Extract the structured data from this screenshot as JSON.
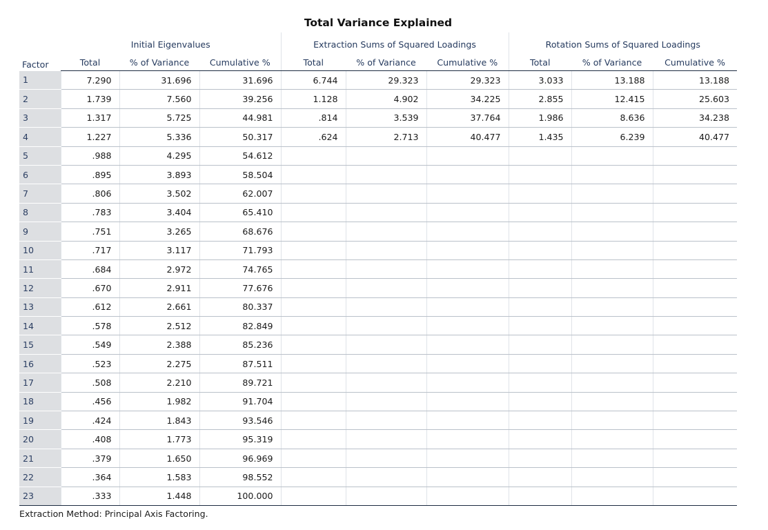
{
  "title": "Total Variance Explained",
  "groups": [
    "Initial Eigenvalues",
    "Extraction Sums of Squared Loadings",
    "Rotation Sums of Squared Loadings"
  ],
  "row_header": "Factor",
  "sub_headers": [
    "Total",
    "% of Variance",
    "Cumulative %",
    "Total",
    "% of Variance",
    "Cumulative %",
    "Total",
    "% of Variance",
    "Cumulative %"
  ],
  "rows": [
    [
      "1",
      "7.290",
      "31.696",
      "31.696",
      "6.744",
      "29.323",
      "29.323",
      "3.033",
      "13.188",
      "13.188"
    ],
    [
      "2",
      "1.739",
      "7.560",
      "39.256",
      "1.128",
      "4.902",
      "34.225",
      "2.855",
      "12.415",
      "25.603"
    ],
    [
      "3",
      "1.317",
      "5.725",
      "44.981",
      ".814",
      "3.539",
      "37.764",
      "1.986",
      "8.636",
      "34.238"
    ],
    [
      "4",
      "1.227",
      "5.336",
      "50.317",
      ".624",
      "2.713",
      "40.477",
      "1.435",
      "6.239",
      "40.477"
    ],
    [
      "5",
      ".988",
      "4.295",
      "54.612",
      "",
      "",
      "",
      "",
      "",
      ""
    ],
    [
      "6",
      ".895",
      "3.893",
      "58.504",
      "",
      "",
      "",
      "",
      "",
      ""
    ],
    [
      "7",
      ".806",
      "3.502",
      "62.007",
      "",
      "",
      "",
      "",
      "",
      ""
    ],
    [
      "8",
      ".783",
      "3.404",
      "65.410",
      "",
      "",
      "",
      "",
      "",
      ""
    ],
    [
      "9",
      ".751",
      "3.265",
      "68.676",
      "",
      "",
      "",
      "",
      "",
      ""
    ],
    [
      "10",
      ".717",
      "3.117",
      "71.793",
      "",
      "",
      "",
      "",
      "",
      ""
    ],
    [
      "11",
      ".684",
      "2.972",
      "74.765",
      "",
      "",
      "",
      "",
      "",
      ""
    ],
    [
      "12",
      ".670",
      "2.911",
      "77.676",
      "",
      "",
      "",
      "",
      "",
      ""
    ],
    [
      "13",
      ".612",
      "2.661",
      "80.337",
      "",
      "",
      "",
      "",
      "",
      ""
    ],
    [
      "14",
      ".578",
      "2.512",
      "82.849",
      "",
      "",
      "",
      "",
      "",
      ""
    ],
    [
      "15",
      ".549",
      "2.388",
      "85.236",
      "",
      "",
      "",
      "",
      "",
      ""
    ],
    [
      "16",
      ".523",
      "2.275",
      "87.511",
      "",
      "",
      "",
      "",
      "",
      ""
    ],
    [
      "17",
      ".508",
      "2.210",
      "89.721",
      "",
      "",
      "",
      "",
      "",
      ""
    ],
    [
      "18",
      ".456",
      "1.982",
      "91.704",
      "",
      "",
      "",
      "",
      "",
      ""
    ],
    [
      "19",
      ".424",
      "1.843",
      "93.546",
      "",
      "",
      "",
      "",
      "",
      ""
    ],
    [
      "20",
      ".408",
      "1.773",
      "95.319",
      "",
      "",
      "",
      "",
      "",
      ""
    ],
    [
      "21",
      ".379",
      "1.650",
      "96.969",
      "",
      "",
      "",
      "",
      "",
      ""
    ],
    [
      "22",
      ".364",
      "1.583",
      "98.552",
      "",
      "",
      "",
      "",
      "",
      ""
    ],
    [
      "23",
      ".333",
      "1.448",
      "100.000",
      "",
      "",
      "",
      "",
      "",
      ""
    ]
  ],
  "footnote": "Extraction Method: Principal Axis Factoring."
}
